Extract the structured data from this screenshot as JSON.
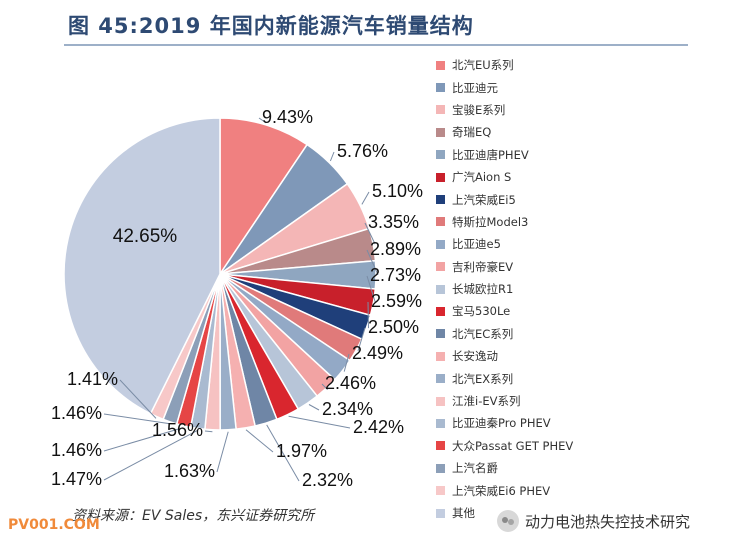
{
  "title": "图 45:2019 年国内新能源汽车销量结构",
  "source": "资料来源：EV Sales，东兴证券研究所",
  "watermark_left": "PV001.COM",
  "watermark_right": "动力电池热失控技术研究",
  "chart_data": {
    "type": "pie",
    "title": "图 45:2019 年国内新能源汽车销量结构",
    "unit": "%",
    "legend_position": "right",
    "slices": [
      {
        "name": "北汽EU系列",
        "value": 9.43,
        "label": "9.43%",
        "color": "#f08080"
      },
      {
        "name": "比亚迪元",
        "value": 5.76,
        "label": "5.76%",
        "color": "#7f98b8"
      },
      {
        "name": "宝骏E系列",
        "value": 5.1,
        "label": "5.10%",
        "color": "#f4b6b6"
      },
      {
        "name": "奇瑞EQ",
        "value": 3.35,
        "label": "3.35%",
        "color": "#b98a8a"
      },
      {
        "name": "比亚迪唐PHEV",
        "value": 2.89,
        "label": "2.89%",
        "color": "#8fa6c0"
      },
      {
        "name": "广汽Aion S",
        "value": 2.73,
        "label": "2.73%",
        "color": "#c8202b"
      },
      {
        "name": "上汽荣威Ei5",
        "value": 2.59,
        "label": "2.59%",
        "color": "#1f3f7a"
      },
      {
        "name": "特斯拉Model3",
        "value": 2.5,
        "label": "2.50%",
        "color": "#e07a7a"
      },
      {
        "name": "比亚迪e5",
        "value": 2.49,
        "label": "2.49%",
        "color": "#93a9c6"
      },
      {
        "name": "吉利帝豪EV",
        "value": 2.46,
        "label": "2.46%",
        "color": "#f2a3a3"
      },
      {
        "name": "长城欧拉R1",
        "value": 2.34,
        "label": "2.34%",
        "color": "#b7c5d8"
      },
      {
        "name": "宝马530Le",
        "value": 2.42,
        "label": "2.42%",
        "color": "#d9262e"
      },
      {
        "name": "北汽EC系列",
        "value": 2.32,
        "label": "2.32%",
        "color": "#6f86a6"
      },
      {
        "name": "长安逸动",
        "value": 1.97,
        "label": "1.97%",
        "color": "#f5b0b0"
      },
      {
        "name": "北汽EX系列",
        "value": 1.63,
        "label": "1.63%",
        "color": "#9aaec8"
      },
      {
        "name": "江淮i-EV系列",
        "value": 1.56,
        "label": "1.56%",
        "color": "#f6c2c2"
      },
      {
        "name": "比亚迪秦Pro PHEV",
        "value": 1.47,
        "label": "1.47%",
        "color": "#a9bad0"
      },
      {
        "name": "大众Passat GET PHEV",
        "value": 1.46,
        "label": "1.46%",
        "color": "#e64545"
      },
      {
        "name": "上汽名爵",
        "value": 1.46,
        "label": "1.46%",
        "color": "#8c9fb8"
      },
      {
        "name": "上汽荣威Ei6 PHEV",
        "value": 1.41,
        "label": "1.41%",
        "color": "#f7c8c8"
      },
      {
        "name": "其他",
        "value": 42.65,
        "label": "42.65%",
        "color": "#c3cde0"
      }
    ]
  }
}
